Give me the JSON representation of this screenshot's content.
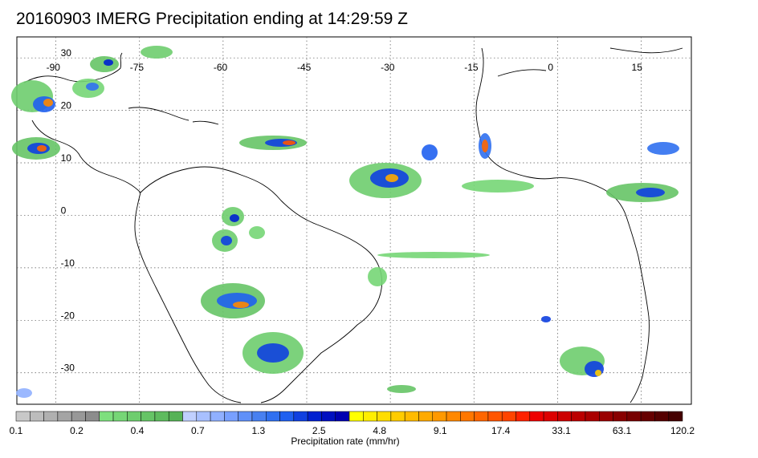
{
  "title": "20160903 IMERG Precipitation ending at 14:29:59 Z",
  "map": {
    "lon_labels": [
      "-90",
      "-75",
      "-60",
      "-45",
      "-30",
      "-15",
      "0",
      "15"
    ],
    "lon_values": [
      -90,
      -75,
      -60,
      -45,
      -30,
      -15,
      0,
      15
    ],
    "lat_labels": [
      "30",
      "20",
      "10",
      "0",
      "-10",
      "-20",
      "-30"
    ],
    "lat_values": [
      30,
      20,
      10,
      0,
      -10,
      -20,
      -30
    ],
    "lon_range": [
      -97,
      24
    ],
    "lat_range": [
      -36,
      34
    ],
    "gridlines": "dotted"
  },
  "colorbar": {
    "label": "Precipitation rate (mm/hr)",
    "tick_labels": [
      "0.1",
      "0.2",
      "0.4",
      "0.7",
      "1.3",
      "2.5",
      "4.8",
      "9.1",
      "17.4",
      "33.1",
      "63.1",
      "120.2"
    ],
    "colors": [
      "#c8c8c8",
      "#bcbcbc",
      "#b0b0b0",
      "#a4a4a4",
      "#989898",
      "#8c8c8c",
      "#7edf7e",
      "#76d676",
      "#6ecd6e",
      "#66c466",
      "#5ebb5e",
      "#56b256",
      "#c0d0ff",
      "#a8c0ff",
      "#90b0ff",
      "#78a0ff",
      "#6090f8",
      "#4880f0",
      "#3070f0",
      "#2060f0",
      "#1040e0",
      "#0020d0",
      "#0010c0",
      "#0000b0",
      "#ffff00",
      "#ffee00",
      "#ffdd00",
      "#ffcc00",
      "#ffbb00",
      "#ffaa00",
      "#ff9900",
      "#ff8800",
      "#ff7700",
      "#ff6600",
      "#ff5500",
      "#ff4400",
      "#ff2200",
      "#ee0000",
      "#dd0000",
      "#cc0000",
      "#bb0000",
      "#aa0000",
      "#990000",
      "#880000",
      "#770000",
      "#660000",
      "#550000",
      "#440000"
    ]
  }
}
